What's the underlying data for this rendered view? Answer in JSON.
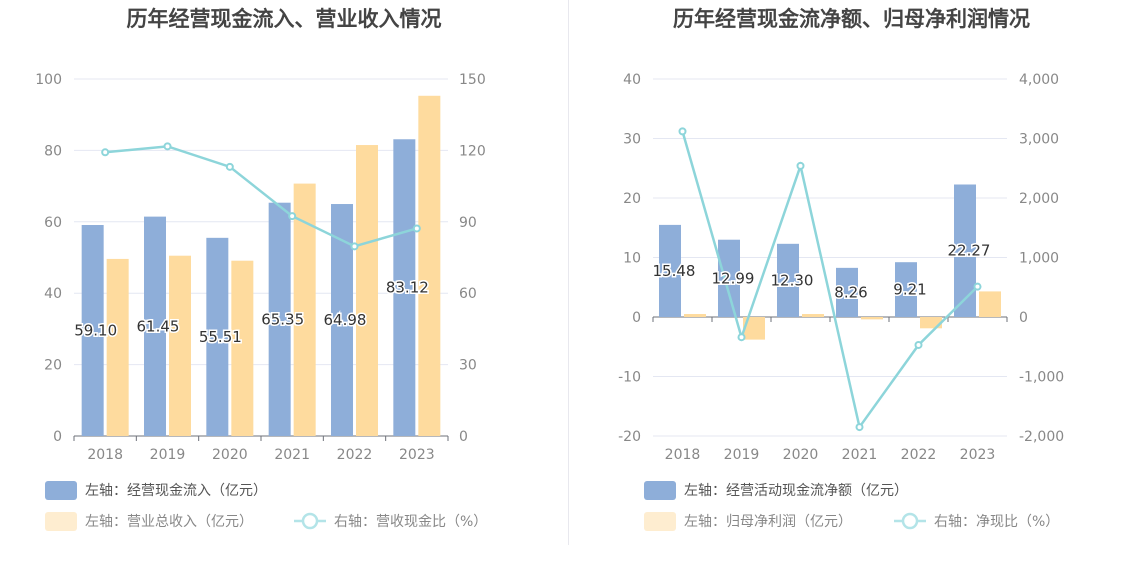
{
  "colors": {
    "bar_primary": "#8eaed9",
    "bar_secondary": "#fedb9e",
    "line": "#8dd5da",
    "grid": "#e4e7f2",
    "axis_text": "#888888",
    "title_text": "#444444",
    "label_text": "#333333"
  },
  "chart_data": [
    {
      "type": "bar",
      "title": "历年经营现金流入、营业收入情况",
      "categories": [
        "2018",
        "2019",
        "2020",
        "2021",
        "2022",
        "2023"
      ],
      "ylim_left": [
        0,
        100
      ],
      "yticks_left": [
        0,
        20,
        40,
        60,
        80,
        100
      ],
      "ytick_labels_left": [
        "0",
        "20",
        "40",
        "60",
        "80",
        "100"
      ],
      "ylim_right": [
        0,
        150
      ],
      "yticks_right": [
        0,
        30,
        60,
        90,
        120,
        150
      ],
      "ytick_labels_right": [
        "0",
        "30",
        "60",
        "90",
        "120",
        "150"
      ],
      "grid": true,
      "legend_position": "bottom",
      "series": [
        {
          "name": "左轴：经营现金流入（亿元）",
          "type": "bar",
          "axis": "left",
          "values": [
            59.1,
            61.45,
            55.51,
            65.35,
            64.98,
            83.12
          ],
          "labels": [
            "59.10",
            "61.45",
            "55.51",
            "65.35",
            "64.98",
            "83.12"
          ]
        },
        {
          "name": "左轴：营业总收入（亿元）",
          "type": "bar",
          "axis": "left",
          "values": [
            49.6,
            50.5,
            49.1,
            70.7,
            81.5,
            95.3
          ]
        },
        {
          "name": "右轴：营收现金比（%）",
          "type": "line",
          "axis": "right",
          "values": [
            119.2,
            121.7,
            113.1,
            92.4,
            79.7,
            87.2
          ]
        }
      ]
    },
    {
      "type": "bar",
      "title": "历年经营现金流净额、归母净利润情况",
      "categories": [
        "2018",
        "2019",
        "2020",
        "2021",
        "2022",
        "2023"
      ],
      "ylim_left": [
        -20,
        40
      ],
      "yticks_left": [
        -20,
        -10,
        0,
        10,
        20,
        30,
        40
      ],
      "ytick_labels_left": [
        "-20",
        "-10",
        "0",
        "10",
        "20",
        "30",
        "40"
      ],
      "ylim_right": [
        -2000,
        4000
      ],
      "yticks_right": [
        -2000,
        -1000,
        0,
        1000,
        2000,
        3000,
        4000
      ],
      "ytick_labels_right": [
        "-2,000",
        "-1,000",
        "0",
        "1,000",
        "2,000",
        "3,000",
        "4,000"
      ],
      "grid": true,
      "legend_position": "bottom",
      "series": [
        {
          "name": "左轴：经营活动现金流净额（亿元）",
          "type": "bar",
          "axis": "left",
          "values": [
            15.48,
            12.99,
            12.3,
            8.26,
            9.21,
            22.27
          ],
          "labels": [
            "15.48",
            "12.99",
            "12.30",
            "8.26",
            "9.21",
            "22.27"
          ]
        },
        {
          "name": "左轴：归母净利润（亿元）",
          "type": "bar",
          "axis": "left",
          "values": [
            0.5,
            -3.8,
            0.5,
            -0.4,
            -1.9,
            4.3
          ]
        },
        {
          "name": "右轴：净现比（%）",
          "type": "line",
          "axis": "right",
          "values": [
            3120,
            -340,
            2540,
            -1850,
            -470,
            510
          ]
        }
      ]
    }
  ]
}
